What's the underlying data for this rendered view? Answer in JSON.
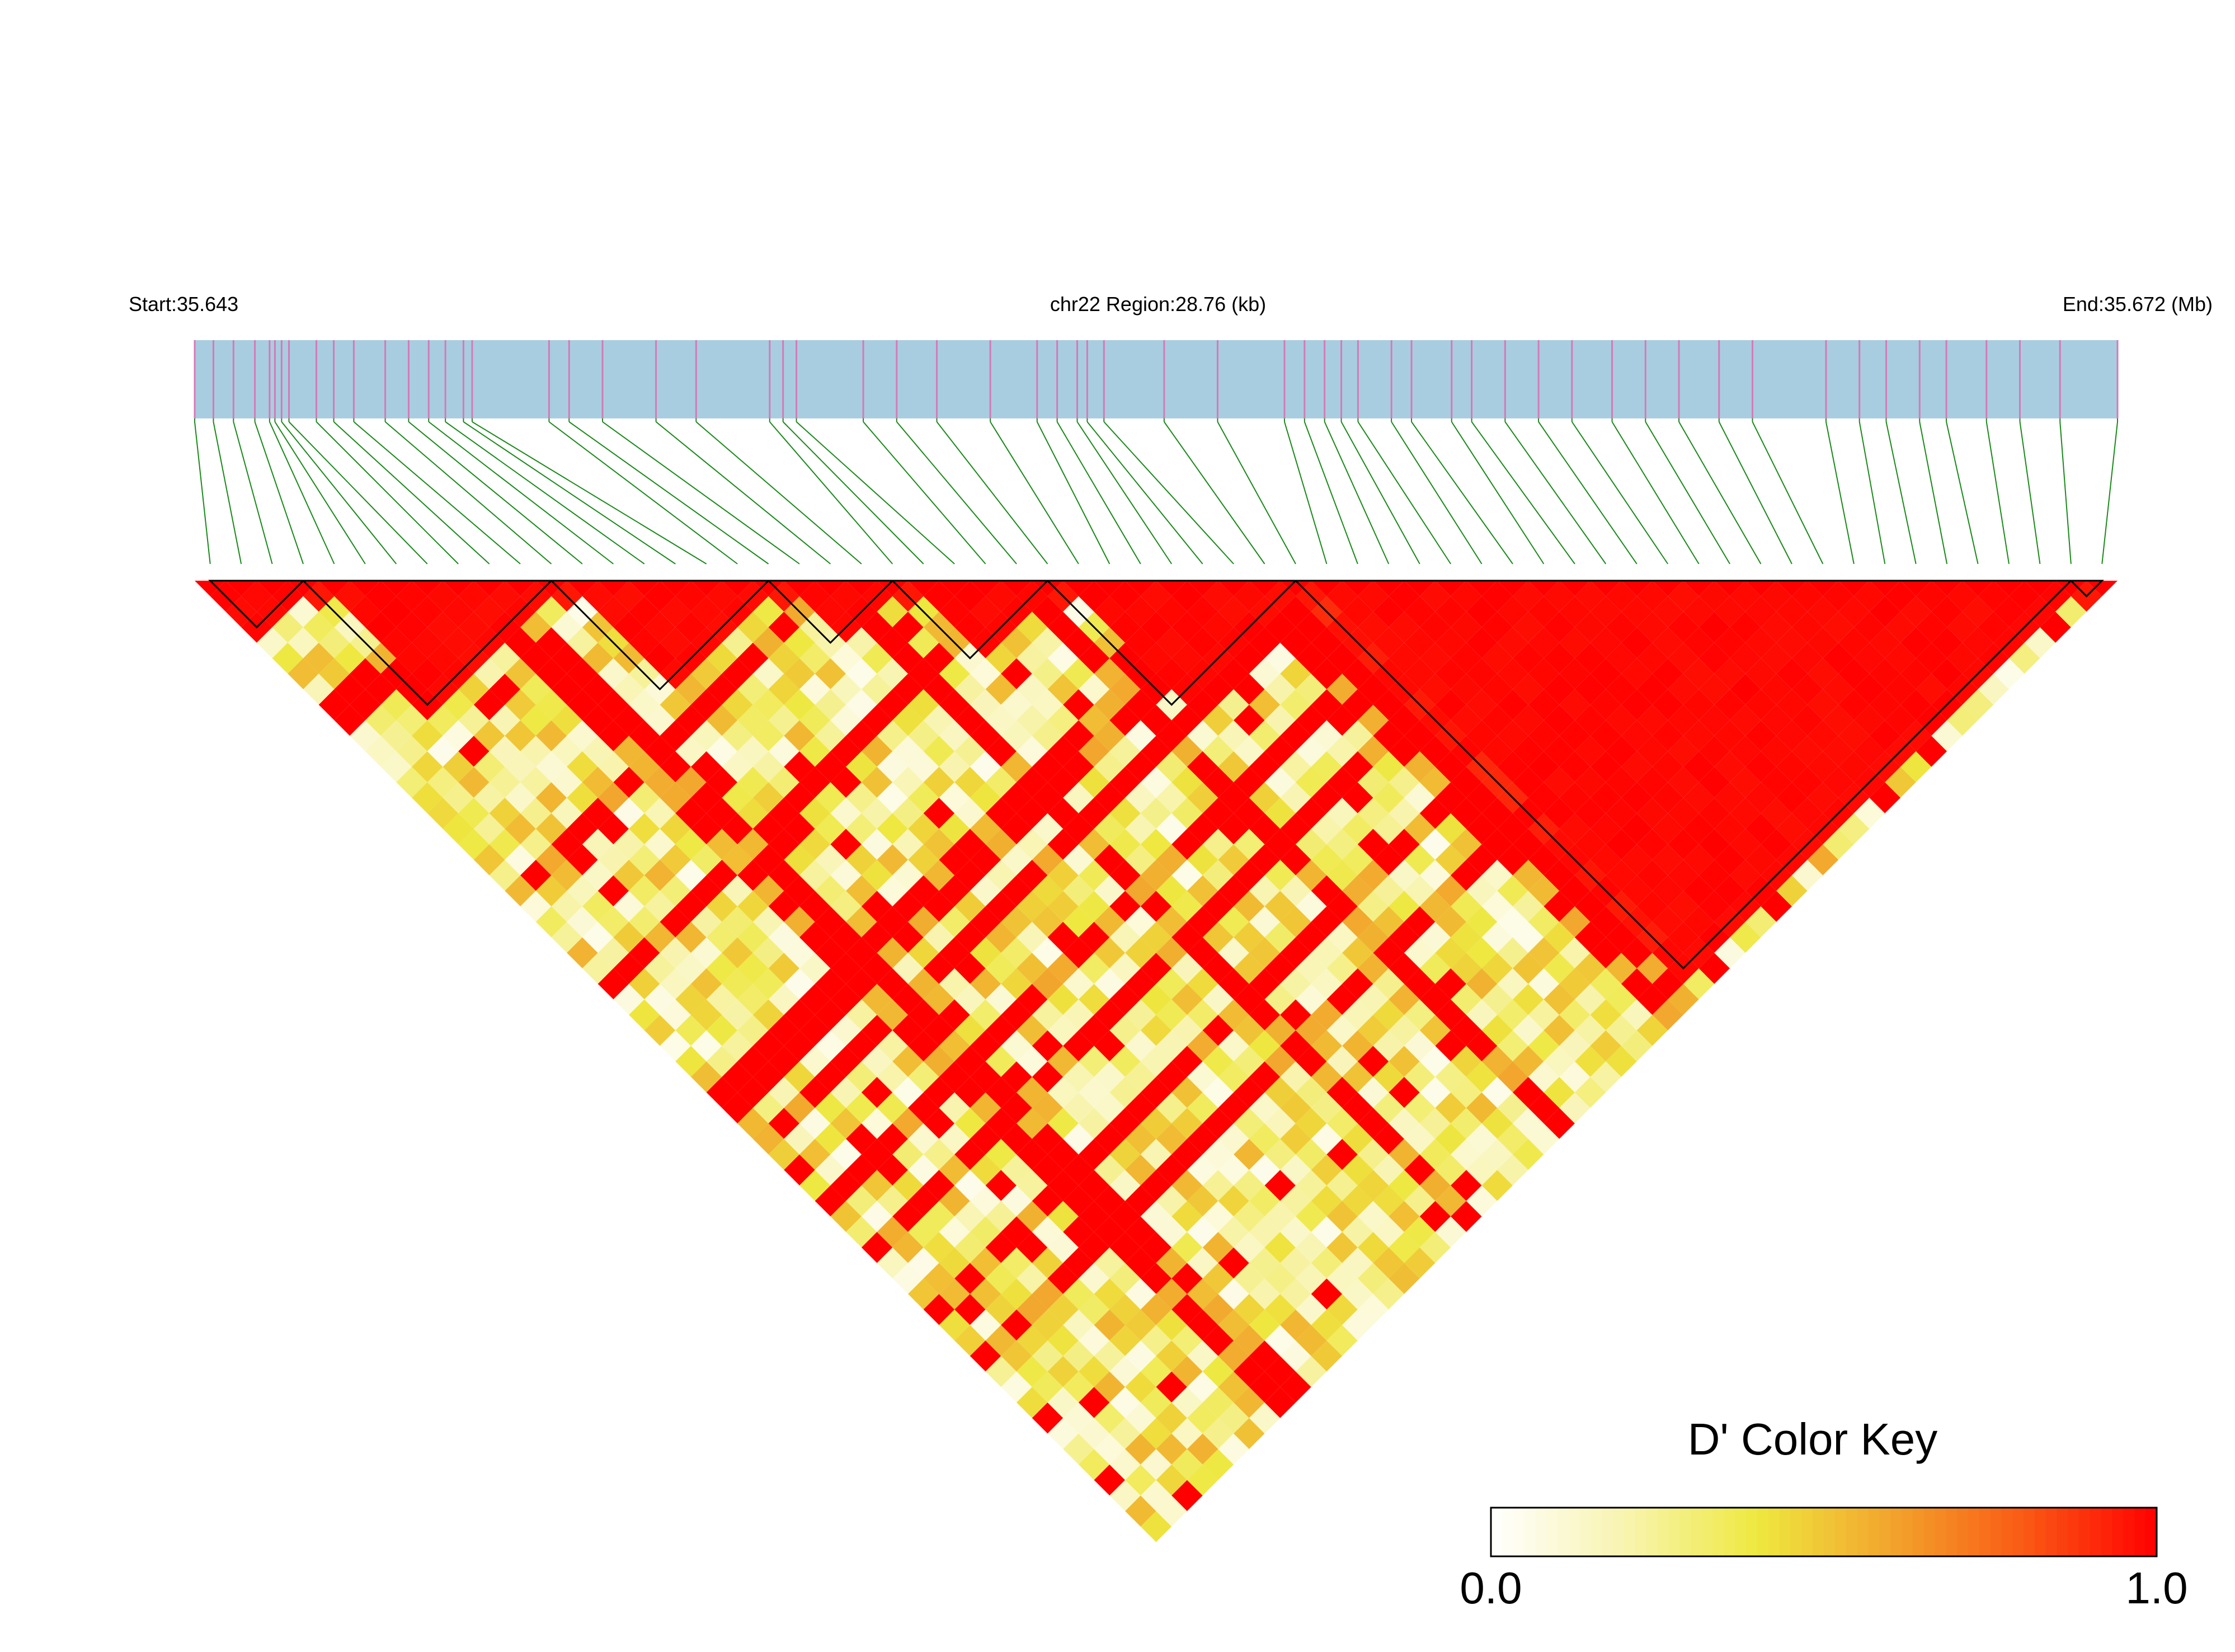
{
  "chart_data": {
    "type": "heatmap",
    "chromosome": "chr22",
    "start_label": "Start:35.643",
    "region_label": "chr22 Region:28.76 (kb)",
    "end_label": "End:35.672 (Mb)",
    "start_mb": 35.643,
    "end_mb": 35.672,
    "region_kb": 28.76,
    "snp_count": 62,
    "snp_positions_kb": [
      0,
      0.28,
      0.58,
      0.9,
      1.12,
      1.2,
      1.3,
      1.41,
      1.82,
      2.08,
      2.38,
      2.85,
      3.2,
      3.5,
      3.75,
      4.02,
      4.15,
      5.3,
      5.6,
      6.1,
      6.9,
      7.5,
      8.6,
      8.8,
      9.0,
      10.0,
      10.5,
      11.1,
      11.9,
      12.6,
      12.9,
      13.2,
      13.35,
      13.6,
      14.5,
      15.3,
      16.3,
      16.6,
      16.9,
      17.15,
      17.4,
      17.9,
      18.2,
      18.8,
      19.1,
      19.6,
      20.1,
      20.6,
      21.2,
      21.7,
      22.2,
      22.8,
      23.3,
      24.4,
      24.9,
      25.3,
      25.8,
      26.2,
      26.8,
      27.3,
      27.9,
      28.76
    ],
    "ld_blocks": [
      {
        "from": 0,
        "to": 3
      },
      {
        "from": 3,
        "to": 11
      },
      {
        "from": 11,
        "to": 18
      },
      {
        "from": 18,
        "to": 22
      },
      {
        "from": 22,
        "to": 27
      },
      {
        "from": 27,
        "to": 35
      },
      {
        "from": 35,
        "to": 60
      },
      {
        "from": 60,
        "to": 61
      }
    ],
    "color_key": {
      "title": "D' Color Key",
      "min_label": "0.0",
      "max_label": "1.0",
      "min": 0.0,
      "max": 1.0,
      "stops": [
        "#ffffff",
        "#f8f4b0",
        "#eee840",
        "#f2a52d",
        "#fa5a15",
        "#ff0000"
      ]
    },
    "colors": {
      "track_fill": "#a8cde0",
      "snp_tick": "#d47ab8",
      "connector": "#1a8a1a",
      "high_ld": "#ff0000"
    },
    "dprime_matrix_note": ""
  }
}
